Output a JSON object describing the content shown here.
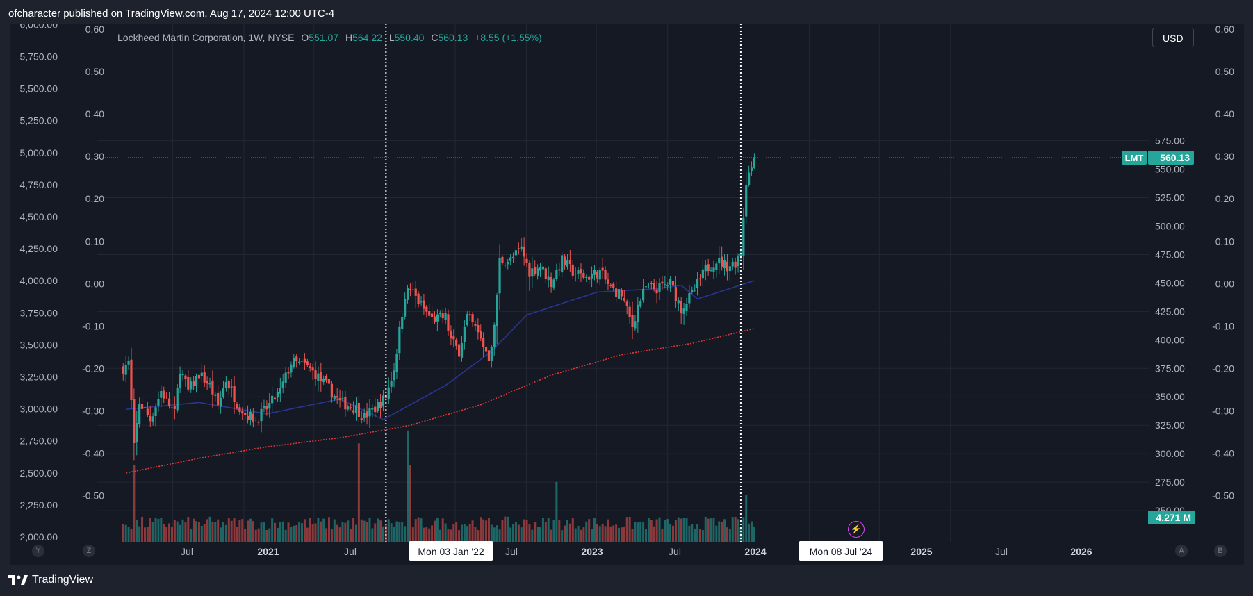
{
  "header": {
    "text": "ofcharacter published on TradingView.com, Aug 17, 2024 12:00 UTC-4"
  },
  "legend": {
    "symbol": "Lockheed Martin Corporation, 1W, NYSE",
    "o_label": "O",
    "o_value": "551.07",
    "h_label": "H",
    "h_value": "564.22",
    "l_label": "L",
    "l_value": "550.40",
    "c_label": "C",
    "c_value": "560.13",
    "change": "+8.55 (+1.55%)"
  },
  "currency_button": "USD",
  "footer": {
    "brand": "TradingView"
  },
  "nav": {
    "y": "Y",
    "z": "Z",
    "a": "A",
    "b": "B"
  },
  "colors": {
    "up": "#26a69a",
    "down": "#ef5350",
    "ma_slow": "#e53935",
    "ma_fast": "#283593",
    "bg": "#151924",
    "grid": "#232733"
  },
  "chart_data": {
    "type": "candlestick",
    "title": "Lockheed Martin Corporation, 1W, NYSE",
    "ticker": "LMT",
    "last_price": "560.13",
    "volume_label": "4.271 M",
    "price_axis": {
      "ticks": [
        "250.00",
        "275.00",
        "300.00",
        "325.00",
        "350.00",
        "375.00",
        "400.00",
        "425.00",
        "450.00",
        "475.00",
        "500.00",
        "525.00",
        "550.00",
        "575.00"
      ],
      "range": [
        236,
        612
      ]
    },
    "left_axis": {
      "ticks": [
        "2,000.00",
        "2,250.00",
        "2,500.00",
        "2,750.00",
        "3,000.00",
        "3,250.00",
        "3,500.00",
        "3,750.00",
        "4,000.00",
        "4,250.00",
        "4,500.00",
        "4,750.00",
        "5,000.00",
        "5,250.00",
        "5,500.00",
        "5,750.00",
        "6,000.00"
      ]
    },
    "osc_axis": {
      "ticks": [
        "0.60",
        "0.50",
        "0.40",
        "0.30",
        "0.20",
        "0.10",
        "0.00",
        "-0.10",
        "-0.20",
        "-0.30",
        "-0.40",
        "-0.50"
      ]
    },
    "time_axis": {
      "labels": [
        "Jul",
        "2021",
        "Jul",
        "Mon 03 Jan '22",
        "Jul",
        "2023",
        "Jul",
        "2024",
        "Mon 08 Jul '24",
        "2025",
        "Jul",
        "2026"
      ],
      "highlighted": [
        "Mon 03 Jan '22",
        "Mon 08 Jul '24"
      ]
    },
    "markers": [
      "2022-01-03",
      "2024-07-08"
    ],
    "start_date": "2020-02-24",
    "close_anchors": [
      [
        "2020-02-24",
        375
      ],
      [
        "2020-03-09",
        380
      ],
      [
        "2020-03-16",
        345
      ],
      [
        "2020-03-23",
        305
      ],
      [
        "2020-04-06",
        345
      ],
      [
        "2020-05-04",
        330
      ],
      [
        "2020-06-01",
        355
      ],
      [
        "2020-07-06",
        335
      ],
      [
        "2020-07-20",
        375
      ],
      [
        "2020-08-10",
        355
      ],
      [
        "2020-09-07",
        370
      ],
      [
        "2020-10-05",
        360
      ],
      [
        "2020-10-26",
        342
      ],
      [
        "2020-11-16",
        365
      ],
      [
        "2020-12-14",
        345
      ],
      [
        "2021-01-04",
        335
      ],
      [
        "2021-02-01",
        330
      ],
      [
        "2021-03-01",
        340
      ],
      [
        "2021-04-05",
        355
      ],
      [
        "2021-05-03",
        380
      ],
      [
        "2021-06-07",
        378
      ],
      [
        "2021-07-05",
        370
      ],
      [
        "2021-08-02",
        360
      ],
      [
        "2021-09-06",
        345
      ],
      [
        "2021-10-18",
        340
      ],
      [
        "2021-11-08",
        332
      ],
      [
        "2021-12-06",
        340
      ],
      [
        "2022-01-03",
        350
      ],
      [
        "2022-01-24",
        375
      ],
      [
        "2022-02-21",
        440
      ],
      [
        "2022-03-07",
        445
      ],
      [
        "2022-04-04",
        430
      ],
      [
        "2022-05-02",
        418
      ],
      [
        "2022-06-06",
        420
      ],
      [
        "2022-06-20",
        400
      ],
      [
        "2022-07-11",
        390
      ],
      [
        "2022-08-01",
        420
      ],
      [
        "2022-08-22",
        410
      ],
      [
        "2022-09-26",
        385
      ],
      [
        "2022-10-10",
        410
      ],
      [
        "2022-10-24",
        470
      ],
      [
        "2022-11-21",
        470
      ],
      [
        "2022-12-19",
        480
      ],
      [
        "2023-01-09",
        460
      ],
      [
        "2023-02-06",
        465
      ],
      [
        "2023-03-06",
        450
      ],
      [
        "2023-04-03",
        470
      ],
      [
        "2023-05-01",
        460
      ],
      [
        "2023-06-05",
        455
      ],
      [
        "2023-07-10",
        460
      ],
      [
        "2023-08-07",
        445
      ],
      [
        "2023-09-04",
        440
      ],
      [
        "2023-10-02",
        412
      ],
      [
        "2023-10-16",
        430
      ],
      [
        "2023-11-06",
        446
      ],
      [
        "2023-12-04",
        445
      ],
      [
        "2024-01-08",
        450
      ],
      [
        "2024-02-05",
        428
      ],
      [
        "2024-03-04",
        440
      ],
      [
        "2024-04-08",
        462
      ],
      [
        "2024-05-06",
        470
      ],
      [
        "2024-06-03",
        465
      ],
      [
        "2024-06-24",
        468
      ],
      [
        "2024-07-08",
        478
      ],
      [
        "2024-07-22",
        540
      ],
      [
        "2024-08-05",
        552
      ],
      [
        "2024-08-12",
        560.13
      ]
    ],
    "volume_spikes": [
      [
        "2020-03-23",
        1.8
      ],
      [
        "2021-10-25",
        2.3
      ],
      [
        "2022-02-28",
        2.6
      ],
      [
        "2022-03-07",
        1.8
      ],
      [
        "2023-03-20",
        1.4
      ],
      [
        "2024-07-22",
        1.1
      ]
    ],
    "ma_fast_anchors": [
      [
        "2020-03-02",
        339
      ],
      [
        "2020-09-07",
        345
      ],
      [
        "2021-03-01",
        335
      ],
      [
        "2021-09-06",
        348
      ],
      [
        "2021-12-27",
        330
      ],
      [
        "2022-06-06",
        360
      ],
      [
        "2022-10-03",
        390
      ],
      [
        "2023-01-02",
        422
      ],
      [
        "2023-07-03",
        442
      ],
      [
        "2023-12-04",
        445
      ],
      [
        "2024-02-05",
        448
      ],
      [
        "2024-03-18",
        436
      ],
      [
        "2024-08-12",
        452
      ]
    ],
    "ma_slow_anchors": [
      [
        "2020-03-02",
        283
      ],
      [
        "2020-09-07",
        296
      ],
      [
        "2021-03-01",
        306
      ],
      [
        "2021-09-06",
        314
      ],
      [
        "2022-03-07",
        325
      ],
      [
        "2022-09-05",
        343
      ],
      [
        "2023-03-06",
        369
      ],
      [
        "2023-09-04",
        387
      ],
      [
        "2024-03-04",
        397
      ],
      [
        "2024-08-12",
        410
      ]
    ]
  }
}
